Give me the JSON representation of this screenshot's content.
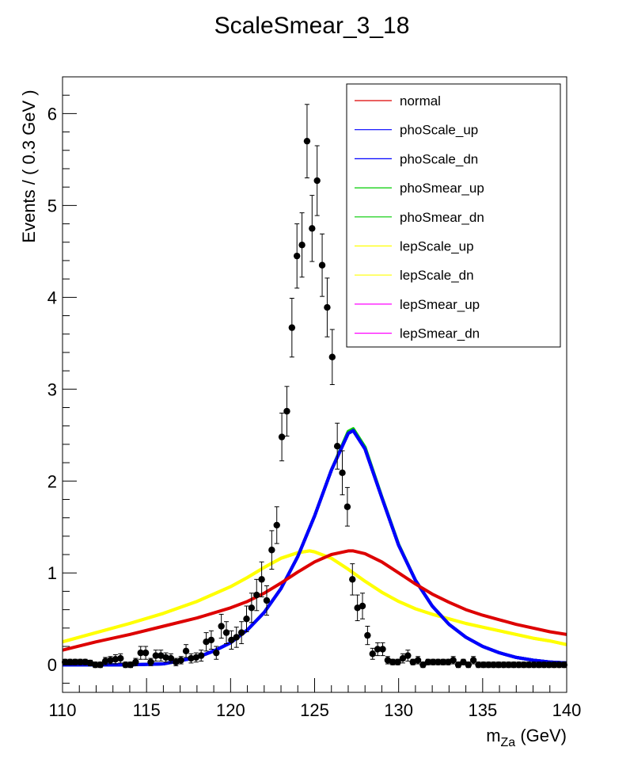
{
  "chart_data": {
    "type": "scatter",
    "title": "ScaleSmear_3_18",
    "ylabel": "Events / ( 0.3 GeV )",
    "xlabel": "m",
    "xlabel_sub": "Za",
    "xlabel_unit": " (GeV)",
    "xlim": [
      110,
      140
    ],
    "ylim": [
      -0.3,
      6.4
    ],
    "x_ticks": [
      110,
      115,
      120,
      125,
      130,
      135,
      140
    ],
    "x_tick_labels": [
      "110",
      "115",
      "120",
      "125",
      "130",
      "135",
      "140"
    ],
    "y_ticks": [
      0,
      1,
      2,
      3,
      4,
      5,
      6
    ],
    "y_tick_labels": [
      "0",
      "1",
      "2",
      "3",
      "4",
      "5",
      "6"
    ],
    "grid": false,
    "legend_position": "top-right",
    "data_points": {
      "x": [
        110.15,
        110.45,
        110.75,
        111.05,
        111.35,
        111.65,
        111.95,
        112.25,
        112.55,
        112.85,
        113.15,
        113.45,
        113.75,
        114.05,
        114.35,
        114.65,
        114.95,
        115.25,
        115.55,
        115.85,
        116.15,
        116.45,
        116.75,
        117.05,
        117.35,
        117.65,
        117.95,
        118.25,
        118.55,
        118.85,
        119.15,
        119.45,
        119.75,
        120.05,
        120.35,
        120.65,
        120.95,
        121.25,
        121.55,
        121.85,
        122.15,
        122.45,
        122.75,
        123.05,
        123.35,
        123.65,
        123.95,
        124.25,
        124.55,
        124.85,
        125.15,
        125.45,
        125.75,
        126.05,
        126.35,
        126.65,
        126.95,
        127.25,
        127.55,
        127.85,
        128.15,
        128.45,
        128.75,
        129.05,
        129.35,
        129.65,
        129.95,
        130.25,
        130.55,
        130.85,
        131.15,
        131.45,
        131.75,
        132.05,
        132.35,
        132.65,
        132.95,
        133.25,
        133.55,
        133.85,
        134.15,
        134.45,
        134.75,
        135.05,
        135.35,
        135.65,
        135.95,
        136.25,
        136.55,
        136.85,
        137.15,
        137.45,
        137.75,
        138.05,
        138.35,
        138.65,
        138.95,
        139.25,
        139.55,
        139.85
      ],
      "y": [
        0.03,
        0.03,
        0.03,
        0.03,
        0.03,
        0.02,
        0.0,
        0.0,
        0.04,
        0.05,
        0.06,
        0.07,
        0.0,
        0.0,
        0.03,
        0.13,
        0.13,
        0.03,
        0.1,
        0.1,
        0.08,
        0.07,
        0.03,
        0.05,
        0.15,
        0.07,
        0.08,
        0.1,
        0.25,
        0.27,
        0.13,
        0.42,
        0.35,
        0.27,
        0.3,
        0.35,
        0.5,
        0.62,
        0.76,
        0.93,
        0.7,
        1.25,
        1.52,
        2.48,
        2.76,
        3.67,
        4.45,
        4.57,
        5.7,
        4.75,
        5.27,
        4.35,
        3.89,
        3.35,
        2.38,
        2.09,
        1.72,
        0.93,
        0.62,
        0.64,
        0.32,
        0.12,
        0.17,
        0.17,
        0.05,
        0.03,
        0.03,
        0.07,
        0.1,
        0.03,
        0.05,
        0.0,
        0.03,
        0.03,
        0.03,
        0.03,
        0.03,
        0.05,
        0.0,
        0.03,
        0.0,
        0.05,
        0.0,
        0.0,
        0.0,
        0.0,
        0.0,
        0.0,
        0.0,
        0.0,
        0.0,
        0.0,
        0.0,
        0.0,
        0.0,
        0.0,
        0.0,
        0.0,
        0.0,
        0.0
      ],
      "y_err": [
        0.03,
        0.03,
        0.03,
        0.03,
        0.03,
        0.03,
        0.03,
        0.03,
        0.04,
        0.04,
        0.05,
        0.05,
        0.03,
        0.03,
        0.04,
        0.07,
        0.07,
        0.04,
        0.06,
        0.06,
        0.05,
        0.05,
        0.04,
        0.04,
        0.07,
        0.05,
        0.05,
        0.06,
        0.1,
        0.1,
        0.07,
        0.13,
        0.12,
        0.1,
        0.11,
        0.12,
        0.14,
        0.16,
        0.17,
        0.19,
        0.16,
        0.21,
        0.2,
        0.26,
        0.27,
        0.32,
        0.35,
        0.35,
        0.4,
        0.36,
        0.38,
        0.34,
        0.32,
        0.3,
        0.25,
        0.24,
        0.21,
        0.17,
        0.14,
        0.14,
        0.1,
        0.06,
        0.07,
        0.07,
        0.04,
        0.03,
        0.03,
        0.05,
        0.06,
        0.03,
        0.04,
        0.03,
        0.03,
        0.03,
        0.03,
        0.03,
        0.03,
        0.04,
        0.03,
        0.03,
        0.03,
        0.04,
        0.03,
        0.03,
        0.03,
        0.03,
        0.03,
        0.03,
        0.03,
        0.03,
        0.03,
        0.03,
        0.03,
        0.03,
        0.03,
        0.03,
        0.03,
        0.03,
        0.03,
        0.03
      ]
    },
    "series": [
      {
        "name": "normal",
        "color": "#dd0000",
        "x": [
          110,
          112,
          114,
          116,
          118,
          120,
          121,
          122,
          123,
          124,
          125,
          126,
          127,
          127.3,
          128,
          129,
          130,
          131,
          132,
          133,
          134,
          135,
          136,
          137,
          138,
          139,
          140
        ],
        "y": [
          0.16,
          0.25,
          0.33,
          0.42,
          0.51,
          0.62,
          0.69,
          0.78,
          0.89,
          1.01,
          1.12,
          1.2,
          1.24,
          1.24,
          1.21,
          1.12,
          1.0,
          0.88,
          0.77,
          0.68,
          0.6,
          0.54,
          0.49,
          0.44,
          0.4,
          0.36,
          0.33
        ]
      },
      {
        "name": "phoScale_up",
        "color": "#0000ff",
        "x": [
          110,
          114,
          116,
          118,
          119,
          120,
          121,
          122,
          123,
          124,
          125,
          126,
          127,
          127.3,
          128,
          129,
          130,
          131,
          132,
          133,
          134,
          135,
          136,
          137,
          138,
          139,
          140
        ],
        "y": [
          0.0,
          0.0,
          0.01,
          0.08,
          0.15,
          0.24,
          0.38,
          0.57,
          0.83,
          1.18,
          1.62,
          2.12,
          2.52,
          2.55,
          2.35,
          1.82,
          1.3,
          0.92,
          0.64,
          0.44,
          0.3,
          0.2,
          0.13,
          0.08,
          0.05,
          0.03,
          0.02
        ]
      },
      {
        "name": "phoScale_dn",
        "color": "#0000ff",
        "x": [
          110,
          114,
          116,
          118,
          119,
          120,
          121,
          122,
          123,
          124,
          125,
          126,
          127,
          127.3,
          128,
          129,
          130,
          131,
          132,
          133,
          134,
          135,
          136,
          137,
          138,
          139,
          140
        ],
        "y": [
          0.0,
          0.0,
          0.01,
          0.08,
          0.15,
          0.24,
          0.38,
          0.57,
          0.83,
          1.18,
          1.62,
          2.12,
          2.52,
          2.55,
          2.35,
          1.82,
          1.3,
          0.92,
          0.64,
          0.44,
          0.3,
          0.2,
          0.13,
          0.08,
          0.05,
          0.03,
          0.02
        ]
      },
      {
        "name": "phoSmear_up",
        "color": "#00cc00",
        "x": [
          110,
          114,
          116,
          118,
          119,
          120,
          121,
          122,
          123,
          124,
          125,
          126,
          127,
          127.3,
          128,
          129,
          130,
          131,
          132,
          133,
          134,
          135,
          136,
          137,
          138,
          139,
          140
        ],
        "y": [
          0.0,
          0.0,
          0.01,
          0.08,
          0.15,
          0.24,
          0.38,
          0.57,
          0.83,
          1.18,
          1.62,
          2.12,
          2.54,
          2.57,
          2.37,
          1.83,
          1.31,
          0.92,
          0.64,
          0.44,
          0.3,
          0.2,
          0.13,
          0.08,
          0.05,
          0.03,
          0.02
        ]
      },
      {
        "name": "phoSmear_dn",
        "color": "#00cc00",
        "x": [
          110,
          114,
          116,
          118,
          119,
          120,
          121,
          122,
          123,
          124,
          125,
          126,
          127,
          127.3,
          128,
          129,
          130,
          131,
          132,
          133,
          134,
          135,
          136,
          137,
          138,
          139,
          140
        ],
        "y": [
          0.0,
          0.0,
          0.01,
          0.08,
          0.15,
          0.24,
          0.38,
          0.57,
          0.83,
          1.18,
          1.62,
          2.12,
          2.52,
          2.55,
          2.35,
          1.82,
          1.3,
          0.92,
          0.64,
          0.44,
          0.3,
          0.2,
          0.13,
          0.08,
          0.05,
          0.03,
          0.02
        ]
      },
      {
        "name": "lepScale_up",
        "color": "#ffff00",
        "x": [
          110,
          112,
          114,
          116,
          118,
          120,
          121,
          122,
          123,
          124,
          124.7,
          125,
          126,
          127,
          128,
          129,
          130,
          131,
          132,
          133,
          134,
          135,
          136,
          137,
          138,
          139,
          140
        ],
        "y": [
          0.25,
          0.35,
          0.45,
          0.56,
          0.69,
          0.85,
          0.95,
          1.06,
          1.16,
          1.22,
          1.24,
          1.23,
          1.16,
          1.04,
          0.91,
          0.79,
          0.69,
          0.61,
          0.55,
          0.5,
          0.45,
          0.41,
          0.37,
          0.33,
          0.29,
          0.26,
          0.22
        ]
      },
      {
        "name": "lepScale_dn",
        "color": "#ffff00",
        "x": [
          110,
          112,
          114,
          116,
          118,
          120,
          121,
          122,
          123,
          124,
          124.7,
          125,
          126,
          127,
          128,
          129,
          130,
          131,
          132,
          133,
          134,
          135,
          136,
          137,
          138,
          139,
          140
        ],
        "y": [
          0.25,
          0.35,
          0.45,
          0.56,
          0.69,
          0.85,
          0.95,
          1.06,
          1.16,
          1.22,
          1.24,
          1.23,
          1.16,
          1.04,
          0.91,
          0.79,
          0.69,
          0.61,
          0.55,
          0.5,
          0.45,
          0.41,
          0.37,
          0.33,
          0.29,
          0.26,
          0.22
        ]
      },
      {
        "name": "lepSmear_up",
        "color": "#ff00ff",
        "x": [
          110,
          114,
          116,
          118,
          119,
          120,
          121,
          122,
          123,
          124,
          125,
          126,
          127,
          127.3,
          128,
          129,
          130,
          131,
          132,
          133,
          134,
          135,
          136,
          137,
          138,
          139,
          140
        ],
        "y": [
          0.0,
          0.0,
          0.01,
          0.08,
          0.15,
          0.24,
          0.38,
          0.57,
          0.83,
          1.18,
          1.62,
          2.12,
          2.52,
          2.55,
          2.35,
          1.82,
          1.3,
          0.92,
          0.64,
          0.44,
          0.3,
          0.2,
          0.13,
          0.08,
          0.05,
          0.03,
          0.02
        ]
      },
      {
        "name": "lepSmear_dn",
        "color": "#ff00ff",
        "x": [
          110,
          114,
          116,
          118,
          119,
          120,
          121,
          122,
          123,
          124,
          125,
          126,
          127,
          127.3,
          128,
          129,
          130,
          131,
          132,
          133,
          134,
          135,
          136,
          137,
          138,
          139,
          140
        ],
        "y": [
          0.0,
          0.0,
          0.01,
          0.08,
          0.15,
          0.24,
          0.38,
          0.57,
          0.83,
          1.18,
          1.62,
          2.12,
          2.52,
          2.55,
          2.35,
          1.82,
          1.3,
          0.92,
          0.64,
          0.44,
          0.3,
          0.2,
          0.13,
          0.08,
          0.05,
          0.03,
          0.02
        ]
      }
    ]
  }
}
